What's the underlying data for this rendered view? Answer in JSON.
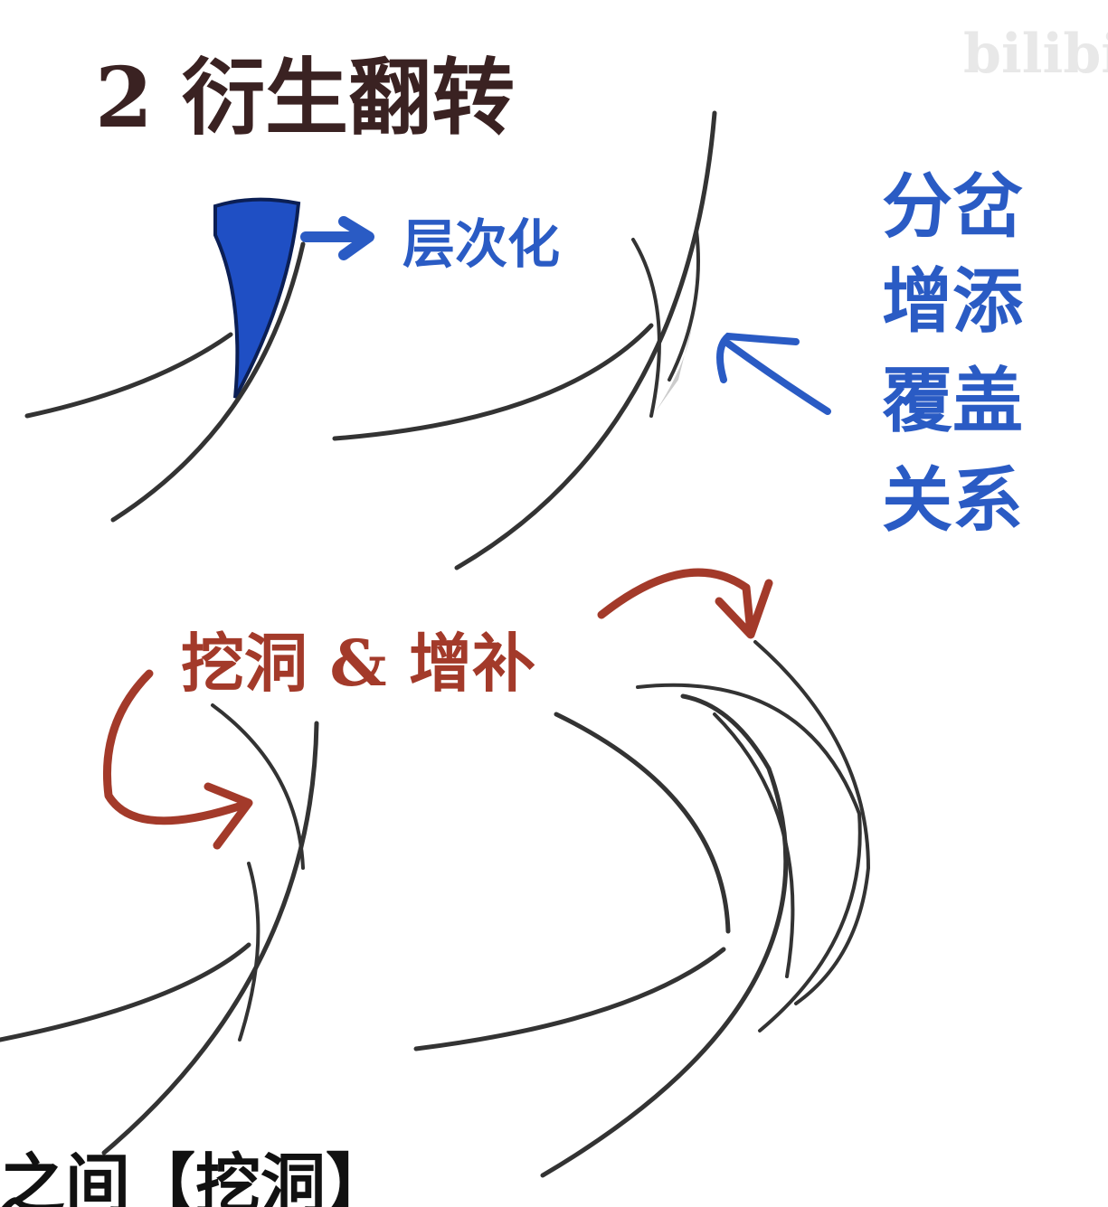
{
  "header": {
    "title": "2 衍生翻转",
    "watermark": "bilibi"
  },
  "labels": {
    "layering": "层次化",
    "relations": [
      "分岔",
      "增添",
      "覆盖",
      "关系"
    ],
    "dig_fill": "挖洞 & 增补"
  },
  "subtitle": "之间【挖洞】"
}
